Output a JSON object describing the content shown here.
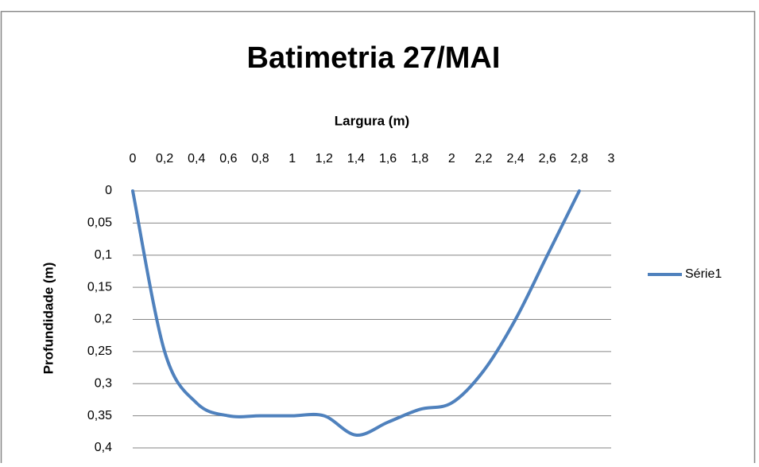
{
  "chart_data": {
    "type": "line",
    "title": "Batimetria 27/MAI",
    "x_label": "Largura (m)",
    "y_label": "Profundidade (m)",
    "x": [
      0,
      0.2,
      0.4,
      0.6,
      0.8,
      1.0,
      1.2,
      1.4,
      1.6,
      1.8,
      2.0,
      2.2,
      2.4,
      2.6,
      2.8
    ],
    "series": [
      {
        "name": "Série1",
        "color": "#4f81bd",
        "values": [
          0,
          0.25,
          0.33,
          0.35,
          0.35,
          0.35,
          0.35,
          0.38,
          0.36,
          0.34,
          0.33,
          0.28,
          0.2,
          0.1,
          0
        ]
      }
    ],
    "xlim": [
      0,
      3
    ],
    "xticks": [
      0,
      {
        "value": 0.2,
        "label": "0,2"
      },
      {
        "value": 0.4,
        "label": "0,4"
      },
      {
        "value": 0.6,
        "label": "0,6"
      },
      {
        "value": 0.8,
        "label": "0,8"
      },
      1,
      {
        "value": 1.2,
        "label": "1,2"
      },
      {
        "value": 1.4,
        "label": "1,4"
      },
      {
        "value": 1.6,
        "label": "1,6"
      },
      {
        "value": 1.8,
        "label": "1,8"
      },
      2,
      {
        "value": 2.2,
        "label": "2,2"
      },
      {
        "value": 2.4,
        "label": "2,4"
      },
      {
        "value": 2.6,
        "label": "2,6"
      },
      {
        "value": 2.8,
        "label": "2,8"
      },
      3
    ],
    "ylim": [
      0,
      0.4
    ],
    "yticks": [
      0,
      {
        "value": 0.05,
        "label": "0,05"
      },
      {
        "value": 0.1,
        "label": "0,1"
      },
      {
        "value": 0.15,
        "label": "0,15"
      },
      {
        "value": 0.2,
        "label": "0,2"
      },
      {
        "value": 0.25,
        "label": "0,25"
      },
      {
        "value": 0.3,
        "label": "0,3"
      },
      {
        "value": 0.35,
        "label": "0,35"
      },
      {
        "value": 0.4,
        "label": "0,4"
      }
    ],
    "y_inverted": true,
    "x_axis_position": "top",
    "smooth": true,
    "grid": true,
    "legend": "right"
  }
}
